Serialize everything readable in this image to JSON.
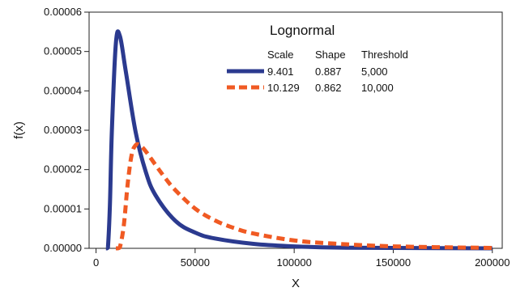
{
  "chart_data": {
    "type": "line",
    "title": "",
    "xlabel": "X",
    "ylabel": "f(x)",
    "xlim": [
      -3500,
      205000
    ],
    "ylim": [
      0,
      6e-05
    ],
    "x_ticks": [
      0,
      50000,
      100000,
      150000,
      200000
    ],
    "x_tick_labels": [
      "0",
      "50000",
      "100000",
      "150000",
      "200000"
    ],
    "y_ticks": [
      0,
      1e-05,
      2e-05,
      3e-05,
      4e-05,
      5e-05,
      6e-05
    ],
    "y_tick_labels": [
      "0.00000",
      "0.00001",
      "0.00002",
      "0.00003",
      "0.00004",
      "0.00005",
      "0.00006"
    ],
    "grid": false,
    "legend": {
      "title": "Lognormal",
      "placement": "top-right",
      "header": [
        "Scale",
        "Shape",
        "Threshold"
      ],
      "rows": [
        [
          "9.401",
          "0.887",
          "5,000"
        ],
        [
          "10.129",
          "0.862",
          "10,000"
        ]
      ]
    },
    "series": [
      {
        "scale": 9.401,
        "shape": 0.887,
        "threshold": 5000,
        "color": "#2b3a8f",
        "style": "solid",
        "x": [
          5000,
          5500,
          6000,
          7000,
          8000,
          10000,
          12000,
          15000,
          20000,
          25000,
          30000,
          40000,
          50000,
          60000,
          80000,
          100000,
          120000,
          150000,
          200000
        ],
        "y": [
          0,
          0,
          2e-07,
          1.1e-05,
          3e-05,
          5.2e-05,
          5.4e-05,
          4.5e-05,
          2.95e-05,
          1.96e-05,
          1.35e-05,
          7e-06,
          4e-06,
          2.5e-06,
          1.1e-06,
          5e-07,
          2e-07,
          1e-07,
          0
        ]
      },
      {
        "scale": 10.129,
        "shape": 0.862,
        "threshold": 10000,
        "color": "#f05a23",
        "style": "dashed",
        "x": [
          10000,
          11000,
          12000,
          14000,
          16000,
          18000,
          20000,
          22000,
          25000,
          30000,
          35000,
          40000,
          50000,
          60000,
          70000,
          80000,
          100000,
          120000,
          150000,
          200000
        ],
        "y": [
          0,
          0,
          2e-07,
          5.8e-06,
          1.65e-05,
          2.38e-05,
          2.62e-05,
          2.62e-05,
          2.47e-05,
          2.12e-05,
          1.78e-05,
          1.48e-05,
          1.01e-05,
          7.1e-06,
          5.1e-06,
          3.7e-06,
          2e-06,
          1.2e-06,
          5e-07,
          1e-07
        ]
      }
    ]
  }
}
